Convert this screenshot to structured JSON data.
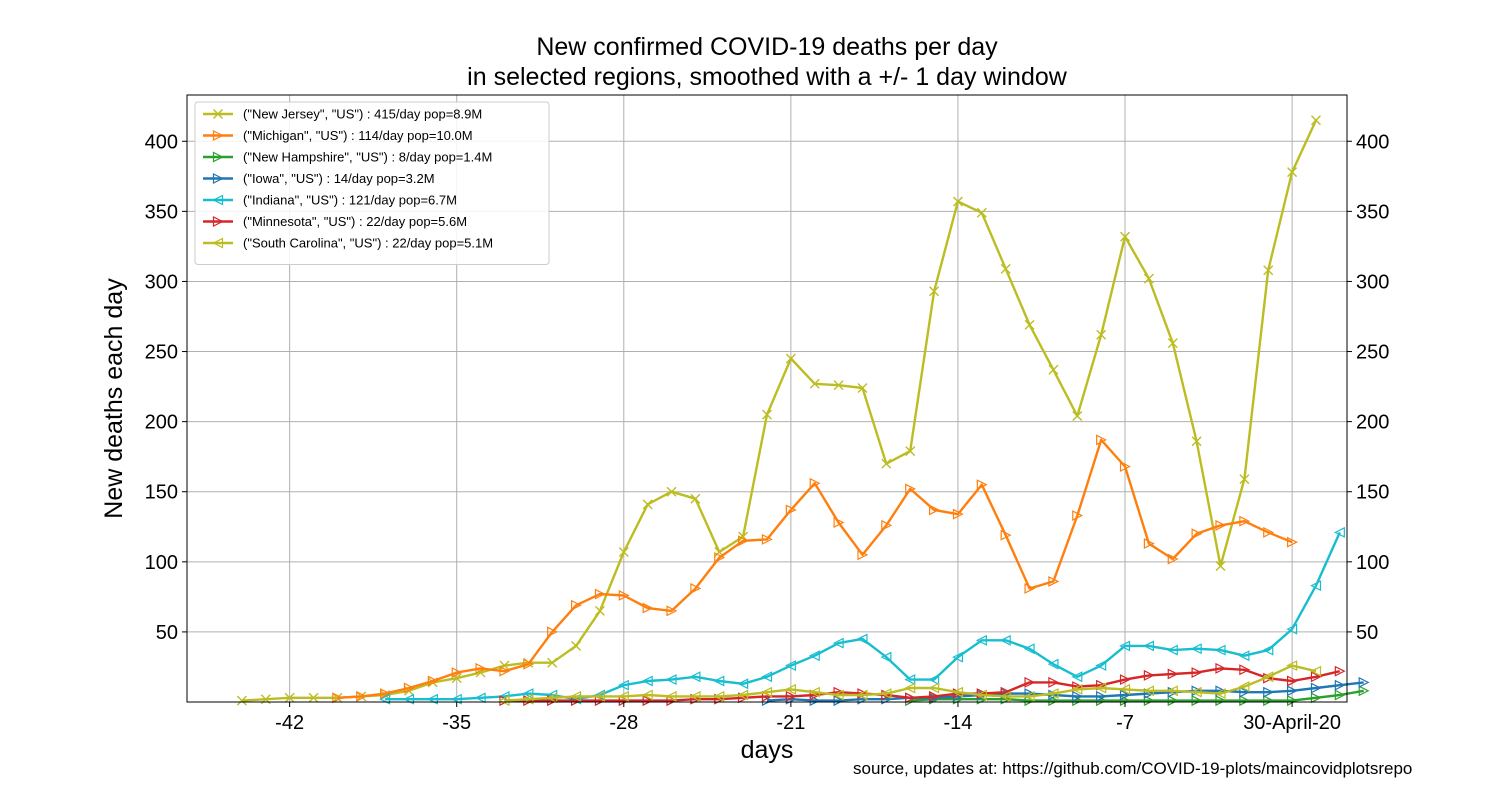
{
  "chart_data": {
    "type": "line",
    "title": [
      "New confirmed COVID-19 deaths per day",
      "in selected regions, smoothed with a +/- 1 day window"
    ],
    "xlabel": "days",
    "ylabel": "New deaths each day",
    "x_ticks": [
      {
        "value": -42,
        "label": "-42"
      },
      {
        "value": -35,
        "label": "-35"
      },
      {
        "value": -28,
        "label": "-28"
      },
      {
        "value": -21,
        "label": "-21"
      },
      {
        "value": -14,
        "label": "-14"
      },
      {
        "value": -7,
        "label": "-7"
      },
      {
        "value": 0,
        "label": "30-April-20"
      }
    ],
    "y_ticks": [
      50,
      100,
      150,
      200,
      250,
      300,
      350,
      400
    ],
    "xlim": [
      -46.3,
      2.3
    ],
    "ylim": [
      0,
      433
    ],
    "grid": true,
    "legend_position": "top-left",
    "source_note": "source, updates at: https://github.com/COVID-19-plots/maincovidplotsrepo",
    "series": [
      {
        "name": "(\"New Jersey\", \"US\") : 415/day pop=8.9M",
        "color": "#bcbd22",
        "marker": "x",
        "x_start": -44,
        "values": [
          1,
          2,
          3,
          3,
          3,
          4,
          5,
          8,
          14,
          17,
          21,
          26,
          28,
          28,
          40,
          65,
          107,
          141,
          150,
          145,
          107,
          118,
          205,
          245,
          227,
          226,
          224,
          170,
          179,
          293,
          357,
          349,
          309,
          269,
          237,
          204,
          262,
          332,
          302,
          256,
          186,
          97,
          159,
          308,
          378,
          415
        ]
      },
      {
        "name": "(\"Michigan\", \"US\") : 114/day pop=10.0M",
        "color": "#ff7f0e",
        "marker": "tri-right",
        "x_start": -40,
        "values": [
          3,
          4,
          6,
          10,
          15,
          21,
          24,
          22,
          27,
          50,
          69,
          77,
          76,
          67,
          65,
          81,
          103,
          115,
          116,
          137,
          156,
          128,
          105,
          126,
          152,
          137,
          134,
          155,
          119,
          81,
          86,
          133,
          187,
          168,
          113,
          102,
          120,
          126,
          129,
          121,
          114
        ]
      },
      {
        "name": "(\"New Hampshire\", \"US\") : 8/day pop=1.4M",
        "color": "#2ca02c",
        "marker": "tri-right",
        "x_start": -16,
        "values": [
          1,
          2,
          2,
          2,
          2,
          1,
          1,
          1,
          1,
          1,
          1,
          1,
          1,
          1,
          1,
          1,
          1,
          3,
          5,
          8
        ]
      },
      {
        "name": "(\"Iowa\", \"US\") : 14/day pop=3.2M",
        "color": "#1f77b4",
        "marker": "tri-right",
        "x_start": -22,
        "values": [
          1,
          2,
          1,
          1,
          2,
          2,
          3,
          3,
          4,
          5,
          6,
          6,
          5,
          4,
          4,
          5,
          6,
          7,
          8,
          8,
          7,
          7,
          8,
          10,
          12,
          14
        ]
      },
      {
        "name": "(\"Indiana\", \"US\") : 121/day pop=6.7M",
        "color": "#17becf",
        "marker": "tri-left",
        "x_start": -38,
        "values": [
          2,
          2,
          2,
          2,
          3,
          4,
          6,
          5,
          2,
          5,
          12,
          15,
          16,
          18,
          15,
          13,
          18,
          26,
          33,
          42,
          45,
          32,
          16,
          16,
          32,
          44,
          44,
          38,
          27,
          18,
          26,
          40,
          40,
          37,
          38,
          37,
          33,
          37,
          52,
          83,
          121
        ]
      },
      {
        "name": "(\"Minnesota\", \"US\") : 22/day pop=5.6M",
        "color": "#d62728",
        "marker": "tri-right",
        "x_start": -33,
        "values": [
          1,
          1,
          1,
          1,
          1,
          1,
          1,
          1,
          2,
          2,
          3,
          4,
          4,
          5,
          7,
          6,
          5,
          3,
          4,
          6,
          6,
          7,
          14,
          14,
          11,
          12,
          16,
          19,
          20,
          21,
          24,
          23,
          17,
          15,
          18,
          22
        ]
      },
      {
        "name": "(\"South Carolina\", \"US\") : 22/day pop=5.1M",
        "color": "#bcbd22",
        "marker": "tri-left",
        "x_start": -33,
        "values": [
          1,
          2,
          3,
          4,
          4,
          4,
          5,
          4,
          4,
          4,
          5,
          7,
          9,
          7,
          5,
          5,
          6,
          10,
          10,
          7,
          5,
          4,
          4,
          6,
          9,
          10,
          9,
          8,
          8,
          7,
          6,
          11,
          18,
          26,
          22
        ]
      }
    ]
  }
}
